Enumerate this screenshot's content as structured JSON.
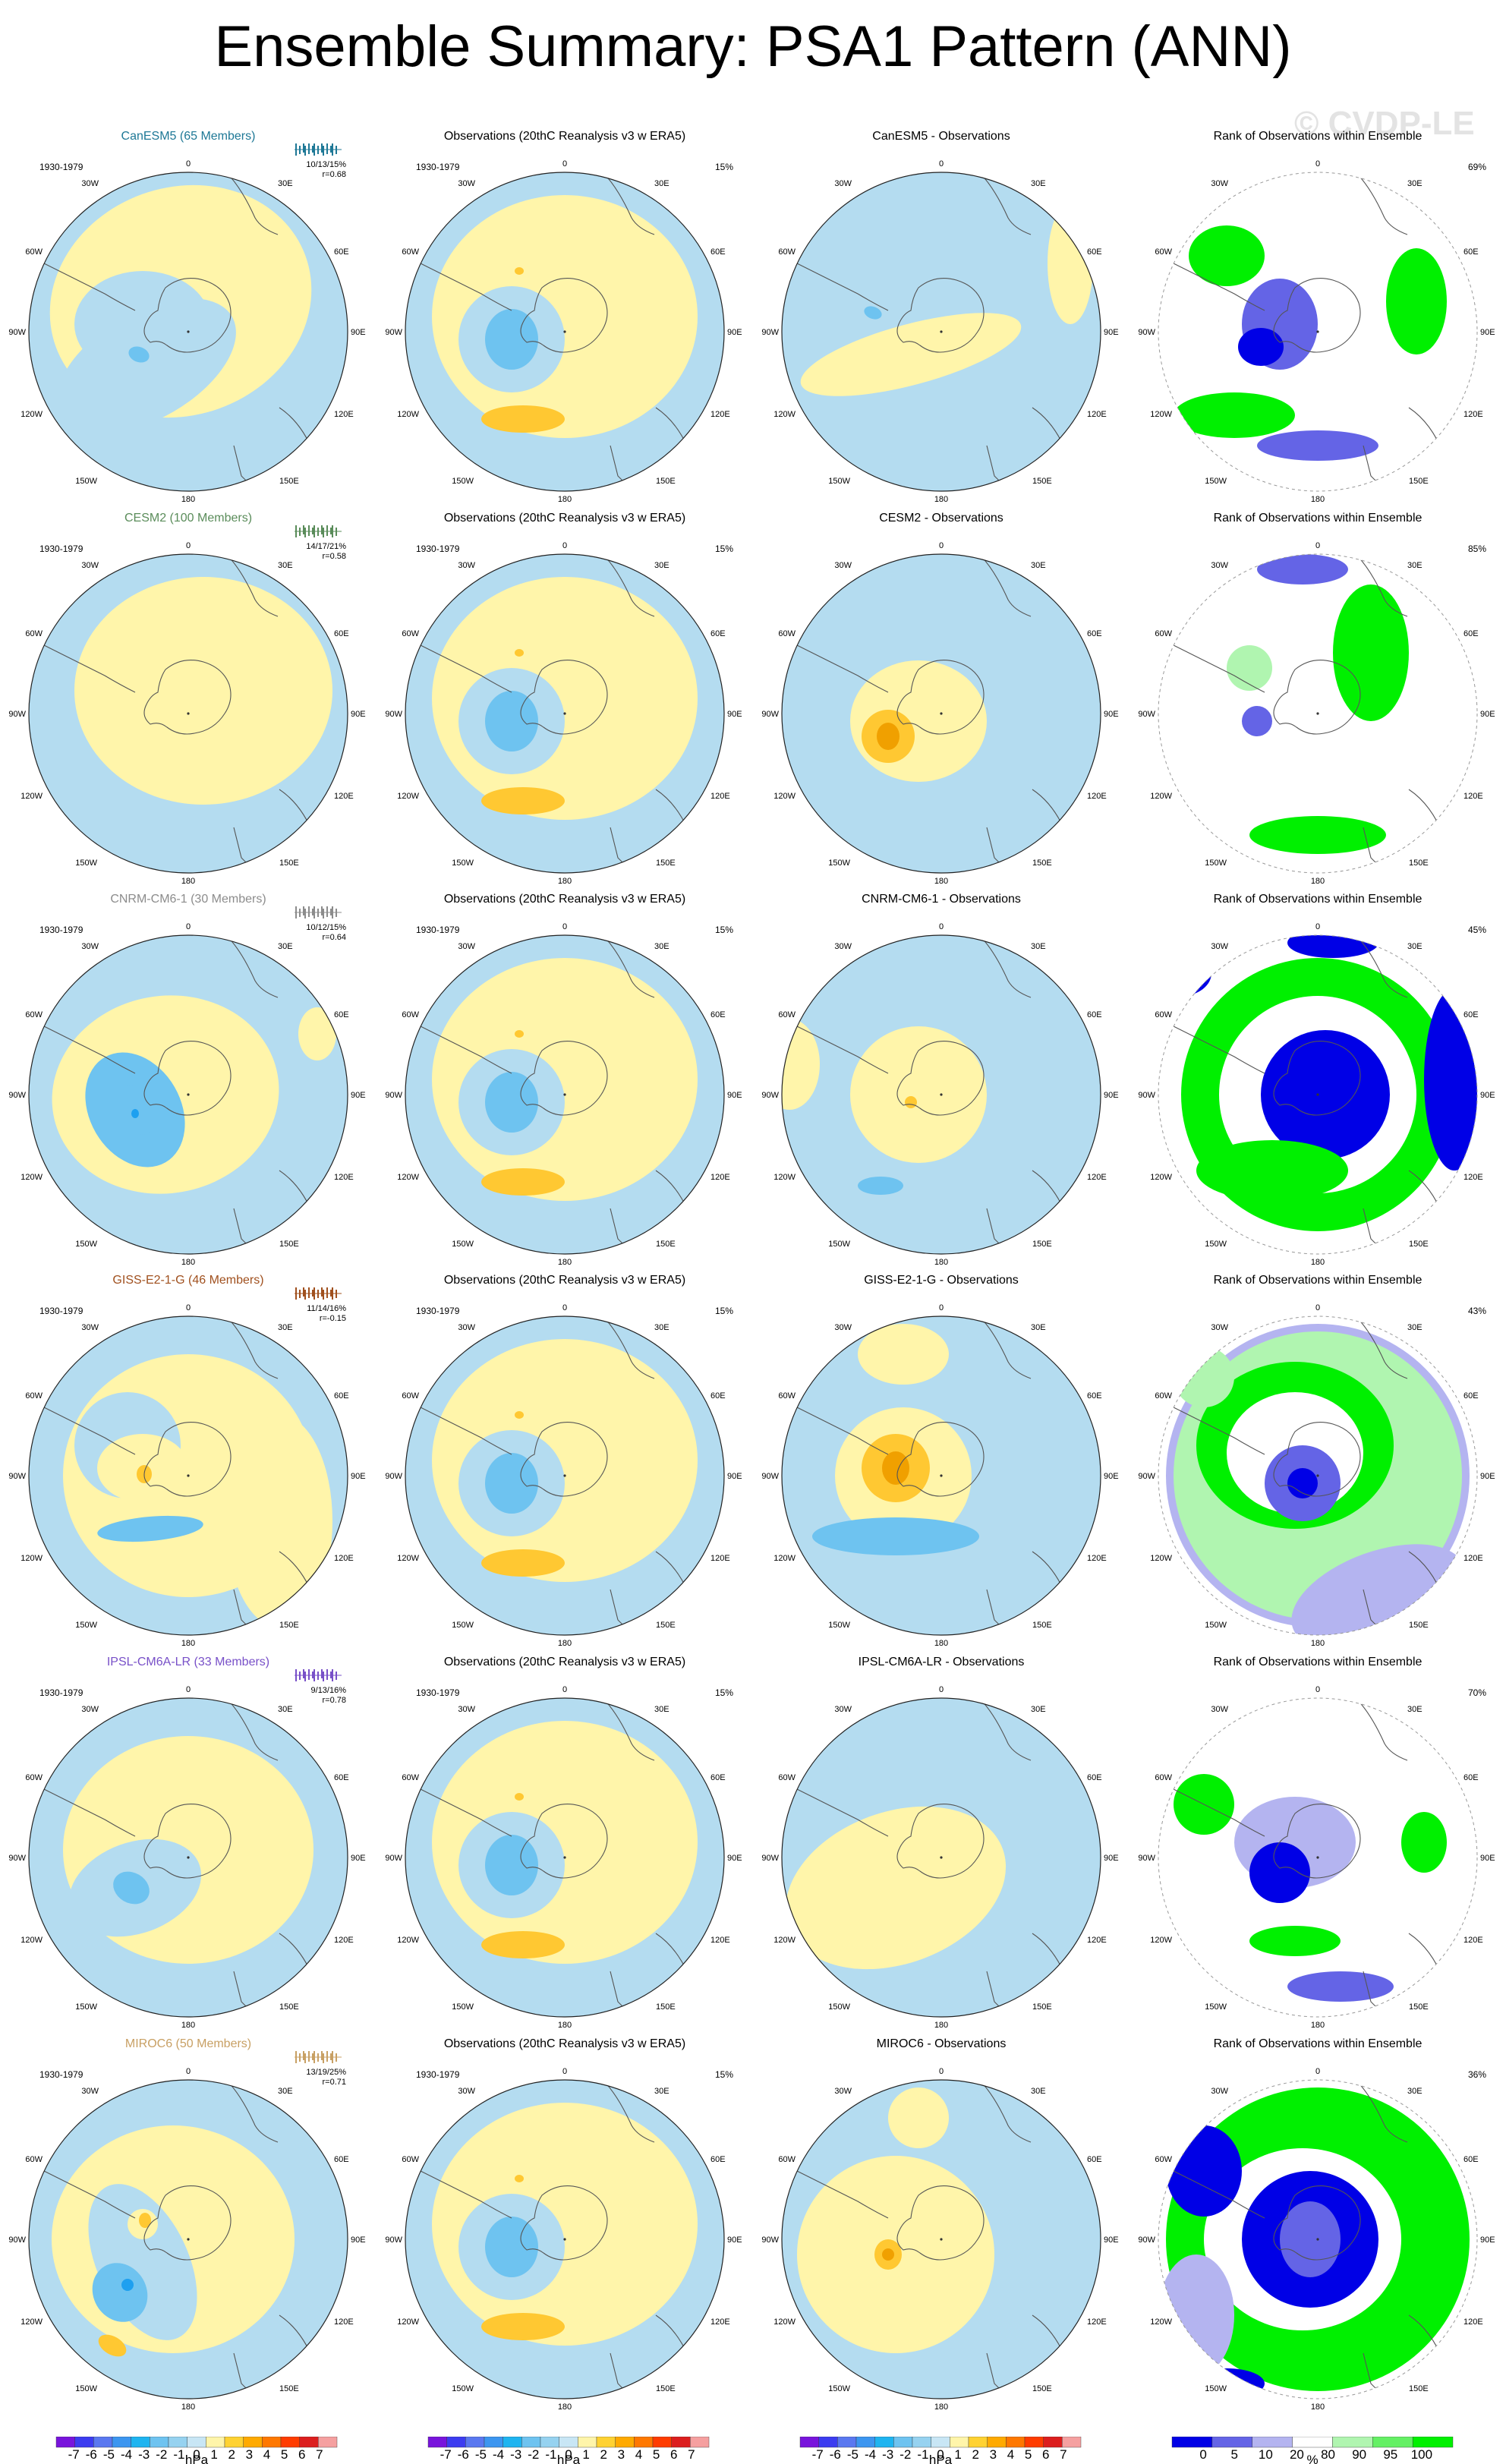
{
  "title": "Ensemble Summary: PSA1 Pattern (ANN)",
  "watermark": "© CVDP-LE",
  "obs_title": "Observations (20thC Reanalysis v3 w ERA5)",
  "rank_title": "Rank of Observations within Ensemble",
  "period": "1930-1979",
  "obs_pct": "15%",
  "map_labels": {
    "top": "0",
    "tr1": "30E",
    "tr2": "60E",
    "right": "90E",
    "br2": "120E",
    "br1": "150E",
    "bottom": "180",
    "bl1": "150W",
    "bl2": "120W",
    "left": "90W",
    "tl2": "60W",
    "tl1": "30W"
  },
  "colors": {
    "ocean_blue": "#b4dcf0",
    "mid_blue": "#6ec3f0",
    "deep_blue": "#1ea0f0",
    "light_yellow": "#fff5aa",
    "orange": "#ffc832",
    "dark_orange": "#f0a000",
    "rank_green": "#00f000",
    "rank_lightgreen": "#b0f5b0",
    "rank_blue": "#0000e6",
    "rank_midblue": "#6464e6",
    "rank_lightblue": "#b4b4f0"
  },
  "rows": [
    {
      "model": "CanESM5 (65 Members)",
      "model_color": "#1e7896",
      "stats1": "10/13/15%",
      "stats2": "r=0.68",
      "diff_title": "CanESM5 - Observations",
      "rank_pct": "69%"
    },
    {
      "model": "CESM2 (100 Members)",
      "model_color": "#5a8c5a",
      "stats1": "14/17/21%",
      "stats2": "r=0.58",
      "diff_title": "CESM2 - Observations",
      "rank_pct": "85%"
    },
    {
      "model": "CNRM-CM6-1 (30 Members)",
      "model_color": "#8c8c8c",
      "stats1": "10/12/15%",
      "stats2": "r=0.64",
      "diff_title": "CNRM-CM6-1 - Observations",
      "rank_pct": "45%"
    },
    {
      "model": "GISS-E2-1-G (46 Members)",
      "model_color": "#a0501e",
      "stats1": "11/14/16%",
      "stats2": "r=-0.15",
      "diff_title": "GISS-E2-1-G - Observations",
      "rank_pct": "43%"
    },
    {
      "model": "IPSL-CM6A-LR (33 Members)",
      "model_color": "#7850c8",
      "stats1": "9/13/16%",
      "stats2": "r=0.78",
      "diff_title": "IPSL-CM6A-LR - Observations",
      "rank_pct": "70%"
    },
    {
      "model": "MIROC6 (50 Members)",
      "model_color": "#c8a064",
      "stats1": "13/19/25%",
      "stats2": "r=0.71",
      "diff_title": "MIROC6 - Observations",
      "rank_pct": "36%"
    }
  ],
  "colorbar_hpa": {
    "ticks": [
      "-7",
      "-6",
      "-5",
      "-4",
      "-3",
      "-2",
      "-1",
      "0",
      "1",
      "2",
      "3",
      "4",
      "5",
      "6",
      "7"
    ],
    "colors": [
      "#7814dc",
      "#3c3cf0",
      "#5a78f0",
      "#3c96f0",
      "#1eb4f0",
      "#6ec3f0",
      "#96d2f0",
      "#c8e6f5",
      "#fff5aa",
      "#ffd232",
      "#ffaa00",
      "#ff7800",
      "#ff3c00",
      "#dc1e1e",
      "#f5a0a0"
    ],
    "unit": "hPa"
  },
  "colorbar_rank": {
    "ticks": [
      "0",
      "5",
      "10",
      "20",
      "80",
      "90",
      "95",
      "100"
    ],
    "colors": [
      "#0000e6",
      "#6464e6",
      "#b4b4f0",
      "#ffffff",
      "#b0f5b0",
      "#64f064",
      "#00f000"
    ],
    "unit": "%"
  }
}
